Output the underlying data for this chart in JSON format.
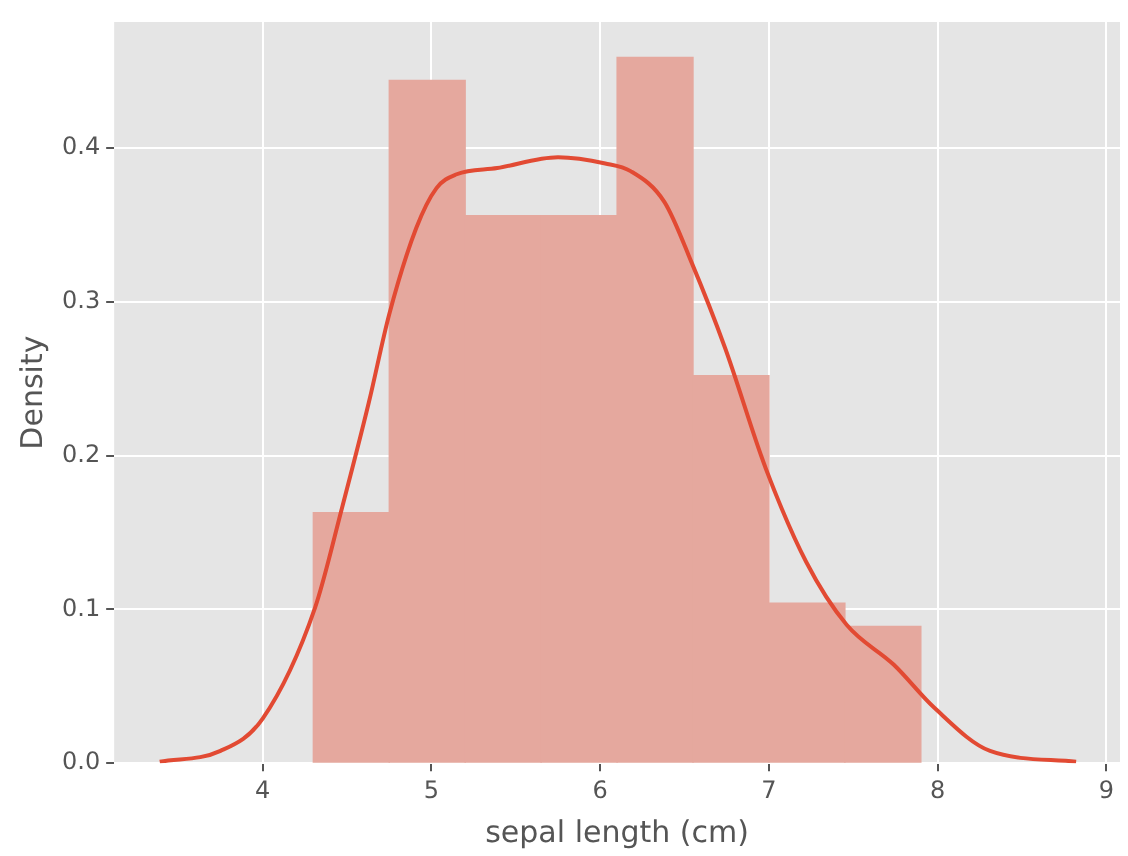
{
  "chart_data": {
    "type": "histogram",
    "xlabel": "sepal length (cm)",
    "ylabel": "Density",
    "xlim": [
      3.12,
      9.08
    ],
    "ylim": [
      0,
      0.482
    ],
    "xticks": [
      4,
      5,
      6,
      7,
      8,
      9
    ],
    "yticks": [
      {
        "value": 0,
        "label": "0.0"
      },
      0.1,
      0.2,
      0.3,
      0.4
    ],
    "grid": true,
    "series": [
      {
        "color": "#e5a89e",
        "bins": [
          4.3,
          4.75,
          5.2,
          5.65,
          6.1,
          6.55,
          7.0,
          7.45,
          7.9
        ],
        "values": [
          0.163,
          0.444,
          0.356,
          0.356,
          0.459,
          0.252,
          0.104,
          0.089
        ]
      },
      {
        "type": "line",
        "color": "#e24a33",
        "x": [
          3.39,
          3.75,
          4.0,
          4.31,
          4.47,
          4.63,
          4.75,
          4.91,
          5.03,
          5.15,
          5.39,
          5.75,
          6.03,
          6.18,
          6.38,
          6.54,
          6.74,
          6.98,
          7.22,
          7.46,
          7.74,
          7.98,
          8.31,
          8.82
        ],
        "values": [
          0.001,
          0.008,
          0.029,
          0.101,
          0.166,
          0.235,
          0.292,
          0.348,
          0.374,
          0.383,
          0.387,
          0.394,
          0.39,
          0.385,
          0.365,
          0.326,
          0.27,
          0.192,
          0.131,
          0.09,
          0.064,
          0.036,
          0.008,
          0.001
        ]
      }
    ]
  }
}
